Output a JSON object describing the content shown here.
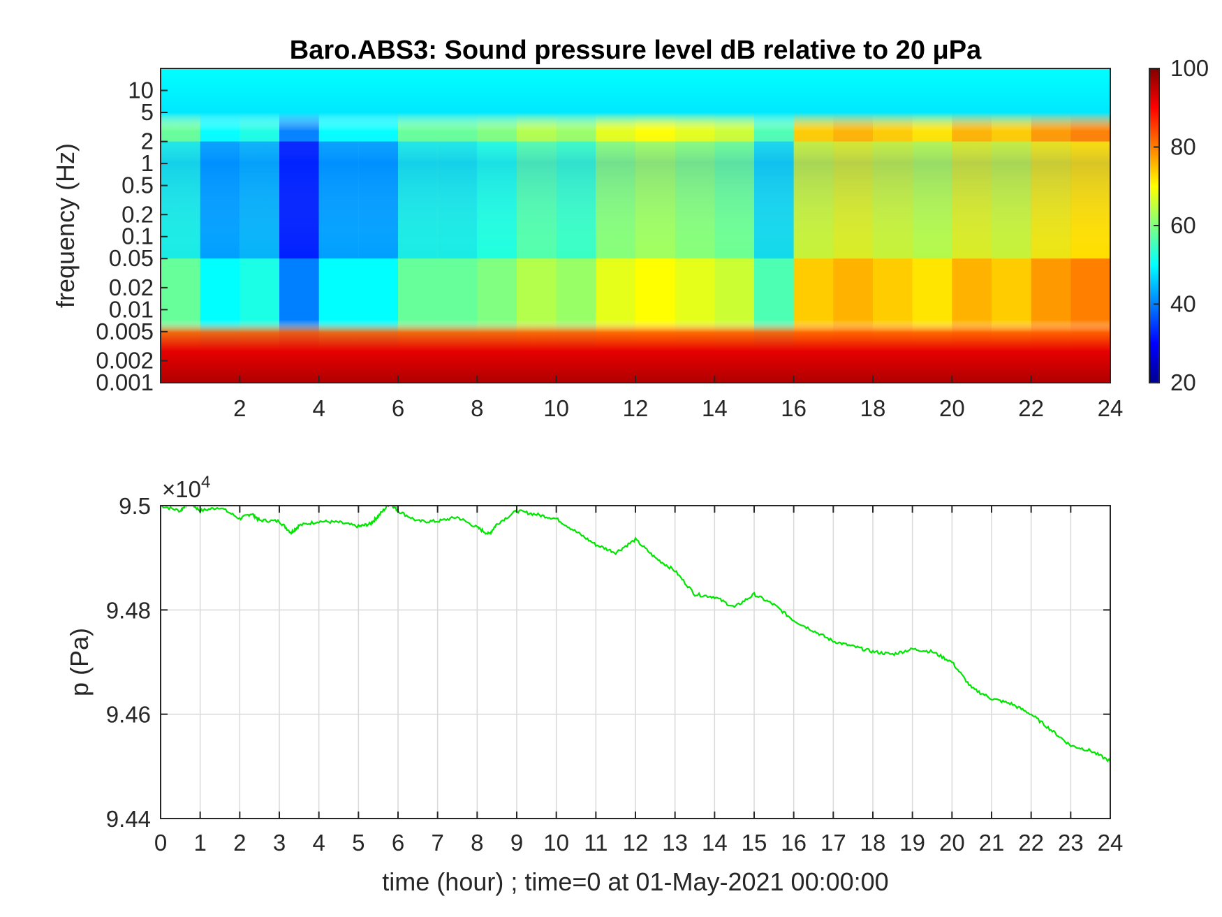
{
  "chart_data": [
    {
      "type": "heatmap",
      "title": "Baro.ABS3: Sound pressure level dB relative to 20 μPa",
      "xlabel": "",
      "ylabel": "frequency (Hz)",
      "xlim": [
        0,
        24
      ],
      "x_ticks": [
        "2",
        "4",
        "6",
        "8",
        "10",
        "12",
        "14",
        "16",
        "18",
        "20",
        "22",
        "24"
      ],
      "y_scale": "log",
      "ylim": [
        0.001,
        20
      ],
      "y_ticks": [
        "0.001",
        "0.002",
        "0.005",
        "0.01",
        "0.02",
        "0.05",
        "0.1",
        "0.2",
        "0.5",
        "1",
        "2",
        "5",
        "10"
      ],
      "colorbar": {
        "range": [
          20,
          100
        ],
        "ticks": [
          "20",
          "40",
          "60",
          "80",
          "100"
        ],
        "colormap": "jet"
      },
      "time_profile_db": [
        {
          "t": 0.5,
          "level": 58
        },
        {
          "t": 1.5,
          "level": 50
        },
        {
          "t": 2.5,
          "level": 52
        },
        {
          "t": 3.5,
          "level": 40
        },
        {
          "t": 4.5,
          "level": 50
        },
        {
          "t": 5.5,
          "level": 50
        },
        {
          "t": 6.5,
          "level": 58
        },
        {
          "t": 7.5,
          "level": 58
        },
        {
          "t": 8.5,
          "level": 60
        },
        {
          "t": 9.5,
          "level": 64
        },
        {
          "t": 10.5,
          "level": 62
        },
        {
          "t": 11.5,
          "level": 68
        },
        {
          "t": 12.5,
          "level": 70
        },
        {
          "t": 13.5,
          "level": 68
        },
        {
          "t": 14.5,
          "level": 66
        },
        {
          "t": 15.5,
          "level": 56
        },
        {
          "t": 16.5,
          "level": 74
        },
        {
          "t": 17.5,
          "level": 76
        },
        {
          "t": 18.5,
          "level": 74
        },
        {
          "t": 19.5,
          "level": 72
        },
        {
          "t": 20.5,
          "level": 76
        },
        {
          "t": 21.5,
          "level": 74
        },
        {
          "t": 22.5,
          "level": 78
        },
        {
          "t": 23.5,
          "level": 80
        }
      ]
    },
    {
      "type": "line",
      "title": "",
      "xlabel": "time (hour) ; time=0 at 01-May-2021 00:00:00",
      "ylabel": "p (Pa)",
      "xlim": [
        0,
        24
      ],
      "ylim": [
        94400,
        95000
      ],
      "x_ticks": [
        "0",
        "1",
        "2",
        "3",
        "4",
        "5",
        "6",
        "7",
        "8",
        "9",
        "10",
        "11",
        "12",
        "13",
        "14",
        "15",
        "16",
        "17",
        "18",
        "19",
        "20",
        "21",
        "22",
        "23",
        "24"
      ],
      "y_ticks": [
        "9.44",
        "9.46",
        "9.48",
        "9.5"
      ],
      "y_exponent_label": "×10",
      "y_exponent_power": "4",
      "grid": true,
      "line_color": "#00e600",
      "series": [
        {
          "x": [
            0,
            0.5,
            0.7,
            1,
            1.5,
            2,
            2.3,
            2.5,
            3,
            3.3,
            3.5,
            4,
            4.5,
            5,
            5.3,
            5.5,
            5.8,
            6,
            6.5,
            7,
            7.5,
            8,
            8.3,
            8.5,
            9,
            9.5,
            10,
            10.5,
            11,
            11.5,
            12,
            12.5,
            13,
            13.5,
            14,
            14.5,
            15,
            15.5,
            16,
            16.5,
            17,
            17.5,
            18,
            18.5,
            19,
            19.5,
            20,
            20.5,
            21,
            21.5,
            22,
            22.5,
            23,
            23.5,
            24
          ],
          "y": [
            95000,
            94990,
            95008,
            94990,
            94997,
            94975,
            94985,
            94972,
            94970,
            94948,
            94962,
            94970,
            94968,
            94960,
            94965,
            94980,
            95005,
            94990,
            94970,
            94970,
            94978,
            94958,
            94945,
            94965,
            94990,
            94983,
            94975,
            94950,
            94925,
            94910,
            94935,
            94900,
            94875,
            94830,
            94825,
            94805,
            94830,
            94810,
            94780,
            94760,
            94740,
            94730,
            94720,
            94715,
            94725,
            94720,
            94700,
            94650,
            94630,
            94620,
            94600,
            94570,
            94540,
            94530,
            94510
          ]
        }
      ]
    }
  ]
}
